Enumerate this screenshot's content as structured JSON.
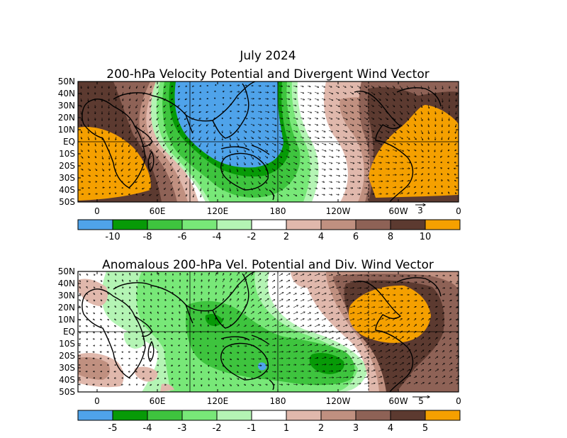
{
  "title_top": "July 2024",
  "colors": {
    "c_blue": "#4fa3ea",
    "c_dgreen": "#079a07",
    "c_green": "#3ec43e",
    "c_lgreen": "#78e878",
    "c_pgreen": "#b4f4b4",
    "c_white": "#ffffff",
    "c_ptan": "#e0b8ac",
    "c_tan": "#c09080",
    "c_brown": "#8e6256",
    "c_dbrown": "#5c3a30",
    "c_orange": "#f5a000"
  },
  "panels": [
    {
      "title": "200-hPa Velocity Potential and Divergent Wind Vector",
      "lat_labels": [
        "50N",
        "40N",
        "30N",
        "20N",
        "10N",
        "EQ",
        "10S",
        "20S",
        "30S",
        "40S",
        "50S"
      ],
      "lon_labels": [
        "0",
        "60E",
        "120E",
        "180",
        "120W",
        "60W",
        "0"
      ],
      "vector_ref": "3",
      "colorbar_labels": [
        "-10",
        "-8",
        "-6",
        "-4",
        "-2",
        "2",
        "4",
        "6",
        "8",
        "10"
      ]
    },
    {
      "title": "Anomalous 200-hPa Vel. Potential and Div. Wind Vector",
      "lat_labels": [
        "50N",
        "40N",
        "30N",
        "20N",
        "10N",
        "EQ",
        "10S",
        "20S",
        "30S",
        "40S",
        "50S"
      ],
      "lon_labels": [
        "0",
        "60E",
        "120E",
        "180",
        "120W",
        "60W",
        "0"
      ],
      "vector_ref": "5",
      "colorbar_labels": [
        "-5",
        "-4",
        "-3",
        "-2",
        "-1",
        "1",
        "2",
        "3",
        "4",
        "5"
      ]
    }
  ]
}
